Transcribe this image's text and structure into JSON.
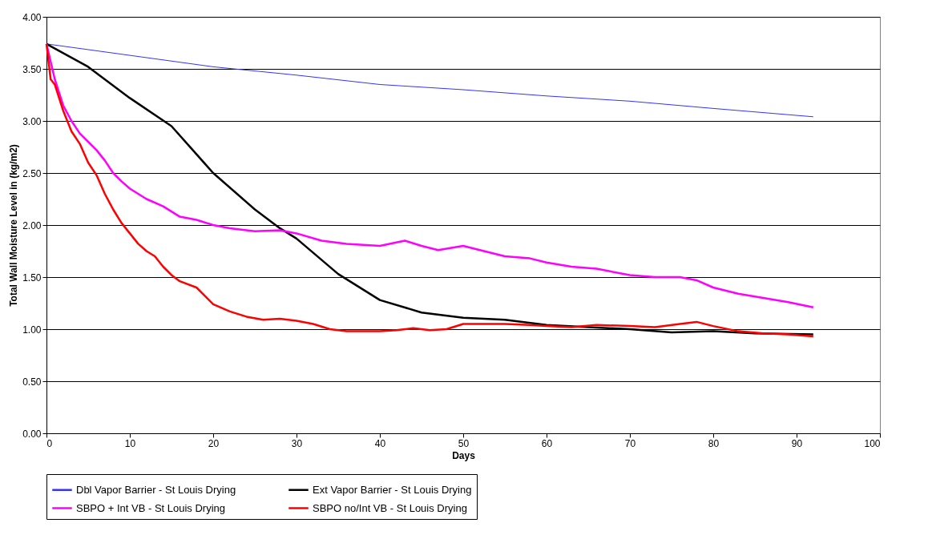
{
  "chart_data": {
    "type": "line",
    "xlabel": "Days",
    "ylabel": "Total Wall Moisture Level in (kg/m2)",
    "xlim": [
      0,
      100
    ],
    "xticks": [
      0,
      10,
      20,
      30,
      40,
      50,
      60,
      70,
      80,
      90,
      100
    ],
    "ylim": [
      0,
      4
    ],
    "yticks": [
      {
        "value": 0,
        "label": "0.00"
      },
      {
        "value": 0.5,
        "label": "0.50"
      },
      {
        "value": 1,
        "label": "1.00"
      },
      {
        "value": 1.5,
        "label": "1.50"
      },
      {
        "value": 2,
        "label": "2.00"
      },
      {
        "value": 2.5,
        "label": "2.50"
      },
      {
        "value": 3,
        "label": "3.00"
      },
      {
        "value": 3.5,
        "label": "3.50"
      },
      {
        "value": 4,
        "label": "4.00"
      }
    ],
    "grid": "y",
    "legend": "bottom",
    "marker": "none",
    "line_style": "solid",
    "series": [
      {
        "name": "Dbl Vapor Barrier - St Louis Drying",
        "color": "#3333ff",
        "x": [
          0,
          10,
          20,
          30,
          40,
          50,
          60,
          70,
          80,
          92
        ],
        "values": [
          3.74,
          3.63,
          3.52,
          3.44,
          3.35,
          3.3,
          3.24,
          3.19,
          3.12,
          3.04
        ]
      },
      {
        "name": "Ext Vapor Barrier - St Louis Drying",
        "color": "#000000",
        "x": [
          0,
          5,
          10,
          15,
          20,
          25,
          28,
          30,
          35,
          40,
          45,
          50,
          55,
          60,
          65,
          70,
          75,
          80,
          85,
          92
        ],
        "values": [
          3.74,
          3.52,
          3.22,
          2.95,
          2.5,
          2.15,
          1.97,
          1.87,
          1.53,
          1.28,
          1.16,
          1.11,
          1.09,
          1.04,
          1.02,
          1.0,
          0.97,
          0.98,
          0.96,
          0.95
        ]
      },
      {
        "name": "SBPO + Int VB - St Louis Drying",
        "color": "#ff00ff",
        "x": [
          0,
          1,
          2,
          3,
          4,
          5,
          6,
          7,
          8,
          9,
          10,
          12,
          14,
          16,
          18,
          20,
          22,
          25,
          28,
          30,
          33,
          36,
          40,
          43,
          45,
          47,
          50,
          52,
          55,
          58,
          60,
          63,
          66,
          70,
          73,
          76,
          78,
          80,
          83,
          86,
          89,
          92
        ],
        "values": [
          3.74,
          3.4,
          3.15,
          3.0,
          2.88,
          2.8,
          2.72,
          2.62,
          2.5,
          2.42,
          2.35,
          2.25,
          2.18,
          2.08,
          2.05,
          2.0,
          1.97,
          1.94,
          1.95,
          1.92,
          1.85,
          1.82,
          1.8,
          1.85,
          1.8,
          1.76,
          1.8,
          1.76,
          1.7,
          1.68,
          1.64,
          1.6,
          1.58,
          1.52,
          1.5,
          1.5,
          1.47,
          1.4,
          1.34,
          1.3,
          1.26,
          1.21
        ]
      },
      {
        "name": "SBPO no/Int VB - St Louis Drying",
        "color": "#ff0000",
        "x": [
          0,
          0.5,
          1,
          2,
          3,
          4,
          5,
          6,
          7,
          8,
          9,
          10,
          11,
          12,
          13,
          14,
          15,
          16,
          18,
          19,
          20,
          22,
          24,
          26,
          28,
          30,
          32,
          34,
          36,
          38,
          40,
          42,
          44,
          46,
          48,
          50,
          52,
          55,
          58,
          60,
          63,
          66,
          70,
          73,
          76,
          78,
          80,
          83,
          86,
          89,
          92
        ],
        "values": [
          3.74,
          3.4,
          3.35,
          3.1,
          2.9,
          2.78,
          2.6,
          2.48,
          2.3,
          2.15,
          2.02,
          1.92,
          1.82,
          1.75,
          1.7,
          1.6,
          1.52,
          1.46,
          1.4,
          1.32,
          1.24,
          1.17,
          1.12,
          1.09,
          1.1,
          1.08,
          1.05,
          1.0,
          0.98,
          0.98,
          0.98,
          0.99,
          1.01,
          0.99,
          1.0,
          1.05,
          1.05,
          1.05,
          1.04,
          1.03,
          1.02,
          1.04,
          1.03,
          1.02,
          1.05,
          1.07,
          1.03,
          0.98,
          0.96,
          0.95,
          0.93
        ]
      }
    ]
  }
}
